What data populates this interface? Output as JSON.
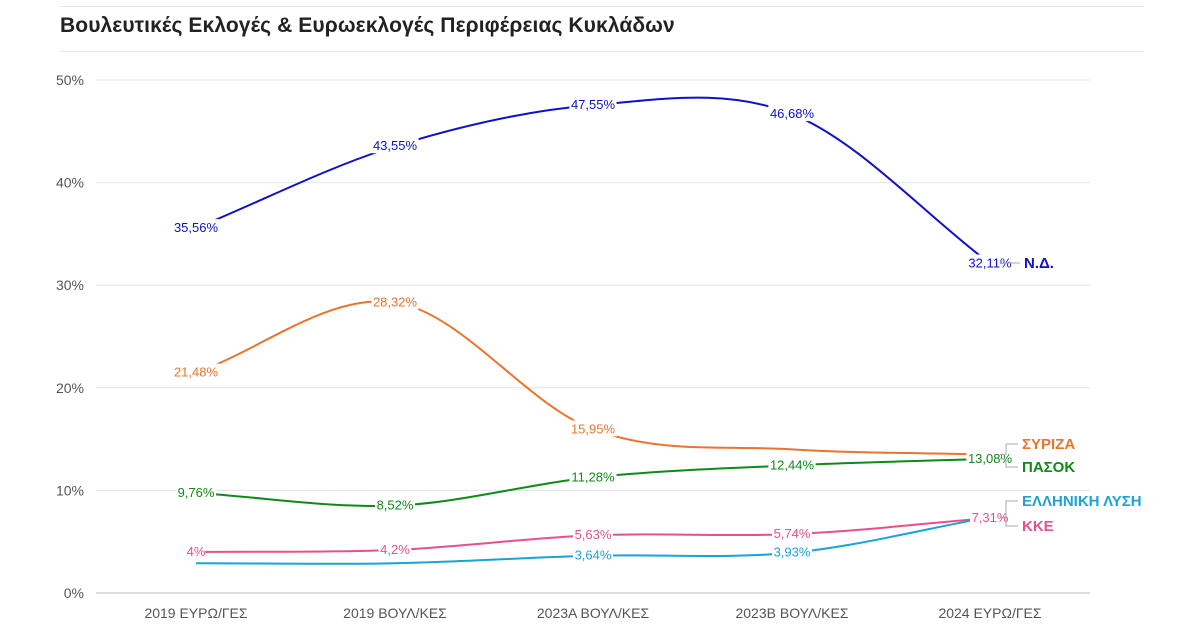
{
  "title": "Βουλευτικές Εκλογές & Ευρωεκλογές Περιφέρειας Κυκλάδων",
  "chart_data": {
    "type": "line",
    "title": "Βουλευτικές Εκλογές & Ευρωεκλογές Περιφέρειας Κυκλάδων",
    "xlabel": "",
    "ylabel": "",
    "categories": [
      "2019 ΕΥΡΩ/ΓΕΣ",
      "2019 ΒΟΥΛ/ΚΕΣ",
      "2023Α ΒΟΥΛ/ΚΕΣ",
      "2023Β ΒΟΥΛ/ΚΕΣ",
      "2024 ΕΥΡΩ/ΓΕΣ"
    ],
    "ylim": [
      0,
      50
    ],
    "yticks": [
      0,
      10,
      20,
      30,
      40,
      50
    ],
    "ytick_labels": [
      "0%",
      "10%",
      "20%",
      "30%",
      "40%",
      "50%"
    ],
    "grid": true,
    "series": [
      {
        "name": "Ν.Δ.",
        "color": "#1010c8",
        "values": [
          35.56,
          43.55,
          47.55,
          46.68,
          32.11
        ],
        "labels": [
          "35,56%",
          "43,55%",
          "47,55%",
          "46,68%",
          "32,11%"
        ]
      },
      {
        "name": "ΣΥΡΙΖΑ",
        "color": "#e8742e",
        "values": [
          21.48,
          28.32,
          15.95,
          14.0,
          13.5
        ],
        "labels": [
          "21,48%",
          "28,32%",
          "15,95%",
          "",
          ""
        ]
      },
      {
        "name": "ΠΑΣΟΚ",
        "color": "#0e8a16",
        "values": [
          9.76,
          8.52,
          11.28,
          12.44,
          13.08
        ],
        "labels": [
          "9,76%",
          "8,52%",
          "11,28%",
          "12,44%",
          "13,08%"
        ]
      },
      {
        "name": "ΚΚΕ",
        "color": "#e8508a",
        "values": [
          4,
          4.2,
          5.63,
          5.74,
          7.31
        ],
        "labels": [
          "4%",
          "4,2%",
          "5,63%",
          "5,74%",
          "7,31%"
        ]
      },
      {
        "name": "ΕΛΛΗΝΙΚΗ ΛΥΣΗ",
        "color": "#1aa3d8",
        "values": [
          2.9,
          2.9,
          3.64,
          3.93,
          7.4
        ],
        "labels": [
          "",
          "",
          "3,64%",
          "3,93%",
          ""
        ]
      }
    ]
  }
}
